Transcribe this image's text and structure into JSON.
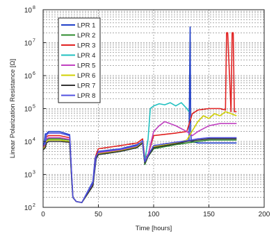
{
  "chart_data": {
    "type": "line",
    "title": "",
    "xlabel": "Time [hours]",
    "ylabel": "Linear Polarization Resistance [Ω]",
    "xlim": [
      0,
      200
    ],
    "ylim": [
      100,
      100000000
    ],
    "yscale": "log",
    "grid": true,
    "grid_style": "dashed",
    "legend_position": "top-left",
    "x_ticks": [
      "0",
      "50",
      "100",
      "150",
      "200"
    ],
    "y_ticks": [
      {
        "base": "10",
        "exp": "2"
      },
      {
        "base": "10",
        "exp": "3"
      },
      {
        "base": "10",
        "exp": "4"
      },
      {
        "base": "10",
        "exp": "5"
      },
      {
        "base": "10",
        "exp": "6"
      },
      {
        "base": "10",
        "exp": "7"
      },
      {
        "base": "10",
        "exp": "8"
      }
    ],
    "series": [
      {
        "name": "LPR 1",
        "color": "#1f3fc8",
        "x": [
          0,
          1,
          2,
          3,
          5,
          15,
          24,
          26,
          27,
          30,
          35,
          45,
          47,
          48,
          50,
          70,
          85,
          90,
          92,
          95,
          100,
          120,
          132,
          133,
          133.5,
          134,
          135,
          140,
          150,
          160,
          170,
          175
        ],
        "y": [
          8000,
          9000,
          17000,
          17000,
          20000,
          20000,
          16000,
          800,
          200,
          150,
          140,
          600,
          3000,
          4000,
          5000,
          6000,
          8000,
          10000,
          2000,
          4000,
          7000,
          9000,
          11000,
          30000000,
          20000,
          10000,
          10000,
          9000,
          9000,
          9000,
          9000,
          9000
        ]
      },
      {
        "name": "LPR 2",
        "color": "#2e8b2e",
        "x": [
          0,
          2,
          3,
          5,
          15,
          24,
          26,
          27,
          30,
          35,
          45,
          48,
          50,
          70,
          85,
          90,
          92,
          95,
          100,
          120,
          130,
          140,
          150,
          160,
          170,
          175
        ],
        "y": [
          6000,
          7000,
          11000,
          12000,
          12000,
          11000,
          700,
          200,
          150,
          140,
          500,
          3000,
          4000,
          5000,
          6500,
          9000,
          2000,
          3500,
          6000,
          8000,
          9000,
          10000,
          11000,
          11000,
          11000,
          11000
        ]
      },
      {
        "name": "LPR 3",
        "color": "#e02020",
        "x": [
          0,
          2,
          3,
          5,
          15,
          24,
          26,
          27,
          30,
          35,
          45,
          48,
          50,
          70,
          85,
          90,
          92,
          95,
          100,
          120,
          130,
          135,
          140,
          150,
          160,
          165,
          166,
          167,
          170,
          171,
          172,
          173,
          175
        ],
        "y": [
          7000,
          8000,
          14000,
          15000,
          15000,
          13000,
          700,
          200,
          150,
          140,
          500,
          4000,
          6000,
          7500,
          9000,
          12000,
          3000,
          4000,
          15000,
          18000,
          20000,
          70000,
          90000,
          100000,
          100000,
          90000,
          20000000,
          20000000,
          80000,
          20000000,
          20000000,
          80000,
          80000
        ]
      },
      {
        "name": "LPR 4",
        "color": "#20c0c0",
        "x": [
          0,
          2,
          3,
          5,
          15,
          24,
          26,
          27,
          30,
          35,
          45,
          48,
          50,
          70,
          85,
          90,
          92,
          95,
          97,
          100,
          105,
          110,
          115,
          120,
          125,
          130,
          132
        ],
        "y": [
          6000,
          7000,
          10000,
          11000,
          11000,
          10000,
          600,
          200,
          150,
          140,
          450,
          3000,
          4000,
          5000,
          6500,
          9000,
          2500,
          12000,
          100000,
          120000,
          140000,
          130000,
          150000,
          120000,
          150000,
          100000,
          80000
        ]
      },
      {
        "name": "LPR 5",
        "color": "#c040c0",
        "x": [
          0,
          2,
          3,
          5,
          15,
          24,
          26,
          27,
          30,
          35,
          45,
          48,
          50,
          70,
          85,
          90,
          92,
          95,
          100,
          105,
          110,
          120,
          130,
          135,
          140,
          150,
          160,
          170,
          175
        ],
        "y": [
          6500,
          7500,
          12000,
          13000,
          13000,
          11500,
          650,
          200,
          150,
          140,
          480,
          3500,
          4500,
          5500,
          7000,
          10000,
          2500,
          4000,
          20000,
          30000,
          40000,
          30000,
          20000,
          15000,
          20000,
          30000,
          35000,
          35000,
          35000
        ]
      },
      {
        "name": "LPR 6",
        "color": "#d0d000",
        "x": [
          0,
          2,
          3,
          5,
          15,
          24,
          26,
          27,
          30,
          35,
          45,
          48,
          50,
          70,
          85,
          90,
          92,
          95,
          100,
          120,
          130,
          140,
          145,
          150,
          155,
          160,
          165,
          170,
          175
        ],
        "y": [
          6000,
          7000,
          10000,
          11000,
          11000,
          10000,
          600,
          200,
          150,
          140,
          450,
          3200,
          4200,
          5200,
          6800,
          9500,
          2200,
          3600,
          7000,
          9000,
          11000,
          40000,
          60000,
          50000,
          70000,
          60000,
          80000,
          70000,
          60000
        ]
      },
      {
        "name": "LPR 7",
        "color": "#333333",
        "x": [
          0,
          2,
          3,
          5,
          15,
          24,
          26,
          27,
          30,
          35,
          45,
          48,
          50,
          70,
          85,
          90,
          92,
          95,
          100,
          120,
          130,
          140,
          150,
          160,
          170,
          175
        ],
        "y": [
          5500,
          6500,
          9000,
          10000,
          10000,
          9500,
          600,
          200,
          150,
          140,
          450,
          3000,
          4000,
          5000,
          6500,
          9000,
          2200,
          3500,
          6500,
          8500,
          10000,
          11000,
          12000,
          12000,
          12000,
          12000
        ]
      },
      {
        "name": "LPR 8",
        "color": "#5050e0",
        "x": [
          0,
          2,
          3,
          5,
          15,
          24,
          26,
          27,
          30,
          35,
          45,
          48,
          50,
          70,
          85,
          90,
          92,
          95,
          100,
          120,
          130,
          140,
          150,
          160,
          170,
          175
        ],
        "y": [
          7500,
          8500,
          16000,
          18000,
          18000,
          15000,
          750,
          200,
          150,
          140,
          550,
          3500,
          4800,
          5800,
          7500,
          10500,
          2400,
          3800,
          7500,
          9500,
          10500,
          12000,
          13000,
          13000,
          13000,
          13000
        ]
      }
    ]
  }
}
